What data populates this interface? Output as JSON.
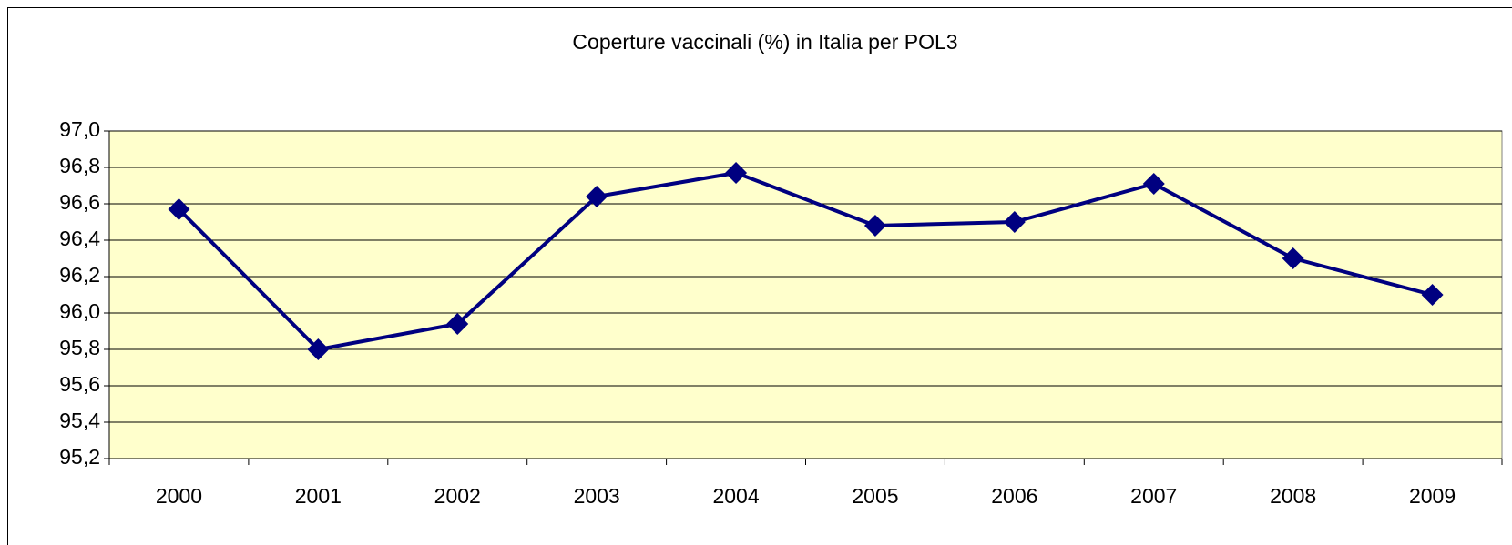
{
  "chart_data": {
    "type": "line",
    "title": "Coperture vaccinali (%) in Italia per POL3",
    "categories": [
      "2000",
      "2001",
      "2002",
      "2003",
      "2004",
      "2005",
      "2006",
      "2007",
      "2008",
      "2009"
    ],
    "series": [
      {
        "name": "POL3",
        "color": "#000080",
        "values": [
          96.57,
          95.8,
          95.94,
          96.64,
          96.77,
          96.48,
          96.5,
          96.71,
          96.3,
          96.1
        ]
      }
    ],
    "ylim": [
      95.2,
      97.0
    ],
    "yticks": [
      {
        "value": 95.2,
        "label": "95,2"
      },
      {
        "value": 95.4,
        "label": "95,4"
      },
      {
        "value": 95.6,
        "label": "95,6"
      },
      {
        "value": 95.8,
        "label": "95,8"
      },
      {
        "value": 96.0,
        "label": "96,0"
      },
      {
        "value": 96.2,
        "label": "96,2"
      },
      {
        "value": 96.4,
        "label": "96,4"
      },
      {
        "value": 96.6,
        "label": "96,6"
      },
      {
        "value": 96.8,
        "label": "96,8"
      },
      {
        "value": 97.0,
        "label": "97,0"
      }
    ],
    "grid": true,
    "plot_background": "#ffffcc"
  }
}
